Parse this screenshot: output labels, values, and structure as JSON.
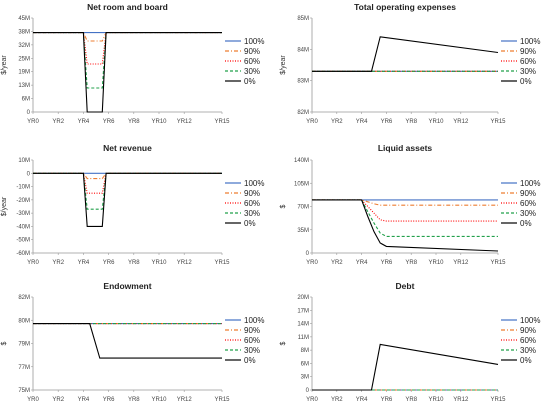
{
  "x_ticks": [
    "YR0",
    "YR2",
    "YR4",
    "YR6",
    "YR8",
    "YR10",
    "YR12",
    "YR15"
  ],
  "legend": [
    {
      "name": "100%",
      "color": "#4472C4",
      "dash": ""
    },
    {
      "name": "90%",
      "color": "#ED7D31",
      "dash": "4,2,1,2"
    },
    {
      "name": "60%",
      "color": "#FF0000",
      "dash": "1,1.5"
    },
    {
      "name": "30%",
      "color": "#22A04B",
      "dash": "3,2"
    },
    {
      "name": "0%",
      "color": "#000000",
      "dash": ""
    }
  ],
  "chart_data": [
    {
      "type": "line",
      "title": "Net room and board",
      "ylabel": "$/year",
      "yticks": [
        "0",
        "6M",
        "13M",
        "19M",
        "25M",
        "32M",
        "38M",
        "45M"
      ],
      "ylim": [
        0,
        45
      ],
      "x": [
        0,
        4,
        4.3,
        5.5,
        5.8,
        15
      ],
      "series": [
        {
          "name": "100%",
          "values": [
            38,
            38,
            38,
            38,
            38,
            38
          ]
        },
        {
          "name": "90%",
          "values": [
            38,
            38,
            34,
            34,
            38,
            38
          ]
        },
        {
          "name": "60%",
          "values": [
            38,
            38,
            23,
            23,
            38,
            38
          ]
        },
        {
          "name": "30%",
          "values": [
            38,
            38,
            11.5,
            11.5,
            38,
            38
          ]
        },
        {
          "name": "0%",
          "values": [
            38,
            38,
            0,
            0,
            38,
            38
          ]
        }
      ]
    },
    {
      "type": "line",
      "title": "Total operating expenses",
      "ylabel": "$/year",
      "yticks": [
        "82M",
        "83M",
        "84M",
        "85M"
      ],
      "ylim": [
        82,
        85
      ],
      "x": [
        0,
        4.8,
        5.5,
        15
      ],
      "series": [
        {
          "name": "100%",
          "values": [
            83.3,
            83.3,
            83.3,
            83.3
          ]
        },
        {
          "name": "90%",
          "values": [
            83.3,
            83.3,
            83.3,
            83.3
          ]
        },
        {
          "name": "60%",
          "values": [
            83.3,
            83.3,
            83.3,
            83.3
          ]
        },
        {
          "name": "30%",
          "values": [
            83.3,
            83.3,
            83.3,
            83.3
          ]
        },
        {
          "name": "0%",
          "values": [
            83.3,
            83.3,
            84.4,
            83.9
          ]
        }
      ]
    },
    {
      "type": "line",
      "title": "Net revenue",
      "ylabel": "$/year",
      "yticks": [
        "-60M",
        "-50M",
        "-40M",
        "-30M",
        "-20M",
        "-10M",
        "0",
        "10M"
      ],
      "ylim": [
        -60,
        10
      ],
      "x": [
        0,
        4,
        4.3,
        5.5,
        5.8,
        15
      ],
      "series": [
        {
          "name": "100%",
          "values": [
            0,
            0,
            0,
            0,
            0,
            0
          ]
        },
        {
          "name": "90%",
          "values": [
            0,
            0,
            -4,
            -4,
            0,
            0
          ]
        },
        {
          "name": "60%",
          "values": [
            0,
            0,
            -15,
            -15,
            0,
            0
          ]
        },
        {
          "name": "30%",
          "values": [
            0,
            0,
            -27,
            -27,
            0,
            0
          ]
        },
        {
          "name": "0%",
          "values": [
            0,
            0,
            -40,
            -40,
            0,
            0
          ]
        }
      ]
    },
    {
      "type": "line",
      "title": "Liquid assets",
      "ylabel": "$",
      "yticks": [
        "0",
        "35M",
        "70M",
        "105M",
        "140M"
      ],
      "ylim": [
        0,
        140
      ],
      "x": [
        0,
        4,
        4.5,
        5,
        5.5,
        6,
        15
      ],
      "series": [
        {
          "name": "100%",
          "values": [
            80,
            80,
            80,
            80,
            80,
            80,
            80
          ]
        },
        {
          "name": "90%",
          "values": [
            80,
            80,
            77,
            74,
            72,
            72,
            72
          ]
        },
        {
          "name": "60%",
          "values": [
            80,
            80,
            70,
            60,
            50,
            48,
            48
          ]
        },
        {
          "name": "30%",
          "values": [
            80,
            80,
            62,
            45,
            30,
            25,
            25
          ]
        },
        {
          "name": "0%",
          "values": [
            80,
            80,
            55,
            32,
            15,
            10,
            3
          ]
        }
      ]
    },
    {
      "type": "line",
      "title": "Endowment",
      "ylabel": "$",
      "yticks": [
        "75M",
        "77M",
        "79M",
        "80M",
        "82M"
      ],
      "ylim": [
        75,
        82
      ],
      "x": [
        0,
        4.5,
        5.3,
        15
      ],
      "series": [
        {
          "name": "100%",
          "values": [
            80,
            80,
            80,
            80
          ]
        },
        {
          "name": "90%",
          "values": [
            80,
            80,
            80,
            80
          ]
        },
        {
          "name": "60%",
          "values": [
            80,
            80,
            80,
            80
          ]
        },
        {
          "name": "30%",
          "values": [
            80,
            80,
            80,
            80
          ]
        },
        {
          "name": "0%",
          "values": [
            80,
            80,
            77.4,
            77.4
          ]
        }
      ]
    },
    {
      "type": "line",
      "title": "Debt",
      "ylabel": "$",
      "yticks": [
        "0",
        "3M",
        "6M",
        "8M",
        "11M",
        "14M",
        "17M",
        "20M"
      ],
      "ylim": [
        0,
        20
      ],
      "x": [
        0,
        4.8,
        5.5,
        15
      ],
      "series": [
        {
          "name": "100%",
          "values": [
            0,
            0,
            0,
            0
          ]
        },
        {
          "name": "90%",
          "values": [
            0,
            0,
            0,
            0
          ]
        },
        {
          "name": "60%",
          "values": [
            0,
            0,
            0,
            0
          ]
        },
        {
          "name": "30%",
          "values": [
            0,
            0,
            0,
            0
          ]
        },
        {
          "name": "0%",
          "values": [
            0,
            0,
            9.8,
            5.5
          ]
        }
      ]
    }
  ]
}
